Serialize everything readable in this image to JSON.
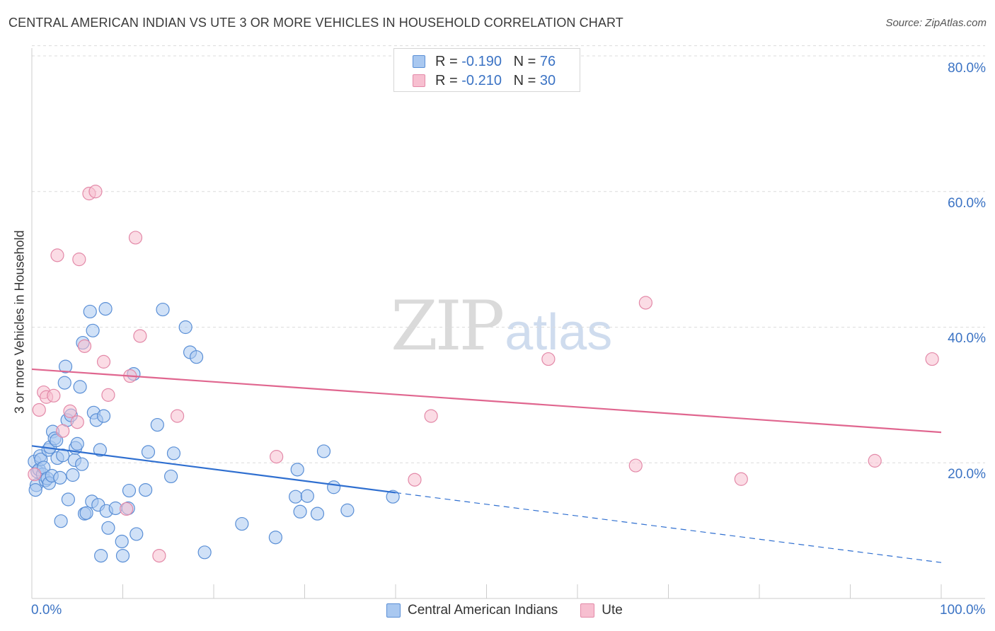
{
  "title": "CENTRAL AMERICAN INDIAN VS UTE 3 OR MORE VEHICLES IN HOUSEHOLD CORRELATION CHART",
  "source": "Source: ZipAtlas.com",
  "watermark": {
    "zip": "ZIP",
    "atlas": "atlas"
  },
  "legend_top": [
    {
      "r_label": "R = ",
      "r_value": "-0.190",
      "n_label": "N = ",
      "n_value": "76"
    },
    {
      "r_label": "R = ",
      "r_value": "-0.210",
      "n_label": "N = ",
      "n_value": "30"
    }
  ],
  "colors": {
    "blue_fill": "#a9c8f0",
    "blue_stroke": "#5a8fd6",
    "blue_line": "#2f6fd0",
    "pink_fill": "#f7bfd0",
    "pink_stroke": "#e389a8",
    "pink_line": "#e0668f",
    "grid": "#dcdcdc",
    "tick_text": "#3b73c4"
  },
  "chart_data": {
    "type": "scatter",
    "title": "CENTRAL AMERICAN INDIAN VS UTE 3 OR MORE VEHICLES IN HOUSEHOLD CORRELATION CHART",
    "xlabel": "",
    "ylabel": "3 or more Vehicles in Household",
    "xlim": [
      0,
      100
    ],
    "ylim": [
      0,
      82
    ],
    "y_ticks": [
      20,
      40,
      60,
      80
    ],
    "y_tick_labels": [
      "20.0%",
      "40.0%",
      "60.0%",
      "80.0%"
    ],
    "x_tick_labels": [
      "0.0%",
      "100.0%"
    ],
    "grid": "horizontal dashed",
    "legend_position": "bottom",
    "series": [
      {
        "name": "Central American Indians",
        "r": -0.19,
        "n": 76,
        "trend": {
          "x0": 0,
          "y0": 22.5,
          "x1": 40,
          "y1": 15.6,
          "dashed_to_x": 100,
          "dashed_to_y": 5.3
        },
        "points": [
          [
            0.3,
            20.2
          ],
          [
            0.5,
            16.7
          ],
          [
            0.6,
            18.7
          ],
          [
            0.8,
            19.0
          ],
          [
            0.9,
            21.0
          ],
          [
            1.0,
            20.5
          ],
          [
            1.2,
            18.3
          ],
          [
            1.3,
            19.3
          ],
          [
            1.5,
            17.4
          ],
          [
            1.7,
            17.7
          ],
          [
            1.8,
            21.9
          ],
          [
            1.9,
            17.0
          ],
          [
            2.0,
            22.3
          ],
          [
            2.2,
            18.1
          ],
          [
            2.3,
            24.6
          ],
          [
            2.5,
            23.6
          ],
          [
            2.7,
            23.3
          ],
          [
            2.8,
            20.7
          ],
          [
            3.1,
            17.8
          ],
          [
            3.2,
            11.4
          ],
          [
            3.4,
            21.1
          ],
          [
            3.6,
            31.8
          ],
          [
            3.7,
            34.2
          ],
          [
            3.9,
            26.3
          ],
          [
            4.0,
            14.6
          ],
          [
            4.3,
            27.0
          ],
          [
            4.5,
            18.2
          ],
          [
            4.7,
            20.4
          ],
          [
            4.8,
            22.2
          ],
          [
            5.0,
            22.8
          ],
          [
            5.3,
            31.2
          ],
          [
            5.5,
            19.8
          ],
          [
            5.6,
            37.7
          ],
          [
            5.8,
            12.5
          ],
          [
            6.0,
            12.6
          ],
          [
            6.4,
            42.3
          ],
          [
            6.6,
            14.3
          ],
          [
            6.7,
            39.5
          ],
          [
            6.8,
            27.4
          ],
          [
            7.1,
            26.3
          ],
          [
            7.3,
            13.8
          ],
          [
            7.5,
            21.9
          ],
          [
            7.6,
            6.3
          ],
          [
            7.9,
            26.9
          ],
          [
            8.1,
            42.7
          ],
          [
            8.2,
            12.9
          ],
          [
            8.4,
            10.4
          ],
          [
            9.2,
            13.3
          ],
          [
            9.9,
            8.4
          ],
          [
            10.0,
            6.3
          ],
          [
            10.6,
            13.3
          ],
          [
            10.7,
            15.9
          ],
          [
            11.2,
            33.1
          ],
          [
            11.5,
            9.5
          ],
          [
            12.5,
            16.0
          ],
          [
            12.8,
            21.6
          ],
          [
            13.8,
            25.6
          ],
          [
            14.4,
            42.6
          ],
          [
            15.3,
            18.0
          ],
          [
            15.6,
            21.4
          ],
          [
            16.9,
            40.0
          ],
          [
            17.4,
            36.3
          ],
          [
            18.1,
            35.6
          ],
          [
            19.0,
            6.8
          ],
          [
            23.1,
            11.0
          ],
          [
            26.8,
            9.0
          ],
          [
            29.0,
            15.0
          ],
          [
            29.2,
            19.0
          ],
          [
            29.5,
            12.8
          ],
          [
            30.3,
            15.1
          ],
          [
            31.4,
            12.5
          ],
          [
            32.1,
            21.7
          ],
          [
            33.2,
            16.4
          ],
          [
            34.7,
            13.0
          ],
          [
            39.7,
            15.0
          ],
          [
            0.4,
            16.0
          ]
        ]
      },
      {
        "name": "Ute",
        "r": -0.21,
        "n": 30,
        "trend": {
          "x0": 0,
          "y0": 33.8,
          "x1": 100,
          "y1": 24.5
        },
        "points": [
          [
            0.3,
            18.3
          ],
          [
            0.8,
            27.8
          ],
          [
            1.3,
            30.4
          ],
          [
            1.6,
            29.7
          ],
          [
            2.4,
            29.9
          ],
          [
            2.8,
            50.6
          ],
          [
            3.4,
            24.7
          ],
          [
            4.2,
            27.6
          ],
          [
            5.0,
            26.0
          ],
          [
            5.2,
            50.0
          ],
          [
            5.8,
            37.2
          ],
          [
            6.3,
            59.7
          ],
          [
            7.0,
            60.0
          ],
          [
            7.9,
            34.9
          ],
          [
            8.4,
            30.0
          ],
          [
            10.4,
            13.2
          ],
          [
            10.8,
            32.8
          ],
          [
            11.4,
            53.2
          ],
          [
            11.9,
            38.7
          ],
          [
            14.0,
            6.3
          ],
          [
            16.0,
            26.9
          ],
          [
            26.9,
            20.9
          ],
          [
            42.1,
            17.5
          ],
          [
            43.9,
            26.9
          ],
          [
            56.8,
            35.3
          ],
          [
            66.4,
            19.6
          ],
          [
            67.5,
            43.6
          ],
          [
            78.0,
            17.6
          ],
          [
            92.7,
            20.3
          ],
          [
            99.0,
            35.3
          ]
        ]
      }
    ]
  },
  "legend_bottom": [
    {
      "label": "Central American Indians"
    },
    {
      "label": "Ute"
    }
  ]
}
